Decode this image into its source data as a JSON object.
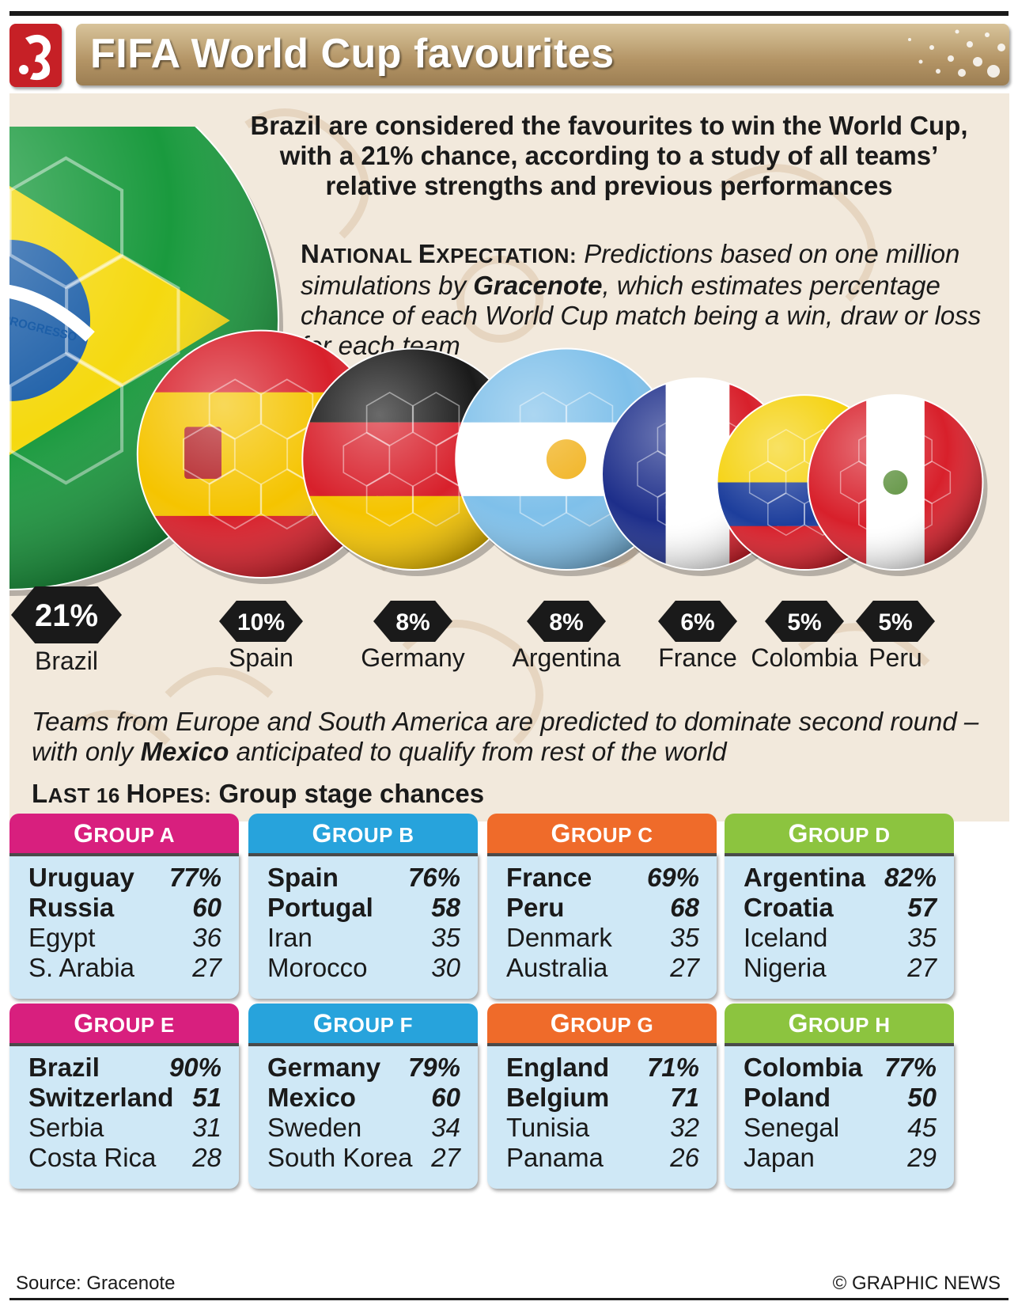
{
  "header": {
    "title": "FIFA World Cup favourites"
  },
  "intro": {
    "line1": "Brazil are considered the favourites to win the World Cup,",
    "line2": "with a 21% chance, according to a study of all teams’",
    "line3": "relative strengths and previous performances"
  },
  "expectation": {
    "label_cap1": "N",
    "label_rest1": "ATIONAL ",
    "label_cap2": "E",
    "label_rest2": "XPECTATION:",
    "text_pre": " Predictions based on one million simulations by ",
    "highlight": "Gracenote",
    "text_post": ", which estimates percentage chance of each World Cup match being a win, draw or loss for each team"
  },
  "chart_data": {
    "type": "bar",
    "categories": [
      "Brazil",
      "Spain",
      "Germany",
      "Argentina",
      "France",
      "Colombia",
      "Peru"
    ],
    "values": [
      21,
      10,
      8,
      8,
      6,
      5,
      5
    ],
    "value_labels": [
      "21%",
      "10%",
      "8%",
      "8%",
      "6%",
      "5%",
      "5%"
    ],
    "flag_ball_text": "M E PROGRESSO",
    "unit": "%"
  },
  "note": {
    "pre": "Teams from Europe and South America are predicted to dominate second round – with only ",
    "highlight": "Mexico",
    "post": " anticipated to qualify from rest of the world"
  },
  "subhead": {
    "cap1": "L",
    "rest1": "AST 16 ",
    "cap2": "H",
    "rest2": "OPES:",
    "rest": " Group stage chances"
  },
  "groups": [
    {
      "cap": "G",
      "rest": "ROUP A",
      "color": "#d81f7e",
      "teams": [
        [
          "Uruguay",
          "77%"
        ],
        [
          "Russia",
          "60"
        ],
        [
          "Egypt",
          "36"
        ],
        [
          "S. Arabia",
          "27"
        ]
      ]
    },
    {
      "cap": "G",
      "rest": "ROUP B",
      "color": "#27a3dc",
      "teams": [
        [
          "Spain",
          "76%"
        ],
        [
          "Portugal",
          "58"
        ],
        [
          "Iran",
          "35"
        ],
        [
          "Morocco",
          "30"
        ]
      ]
    },
    {
      "cap": "G",
      "rest": "ROUP C",
      "color": "#ef6b2a",
      "teams": [
        [
          "France",
          "69%"
        ],
        [
          "Peru",
          "68"
        ],
        [
          "Denmark",
          "35"
        ],
        [
          "Australia",
          "27"
        ]
      ]
    },
    {
      "cap": "G",
      "rest": "ROUP D",
      "color": "#8cc43f",
      "teams": [
        [
          "Argentina",
          "82%"
        ],
        [
          "Croatia",
          "57"
        ],
        [
          "Iceland",
          "35"
        ],
        [
          "Nigeria",
          "27"
        ]
      ]
    },
    {
      "cap": "G",
      "rest": "ROUP E",
      "color": "#d81f7e",
      "teams": [
        [
          "Brazil",
          "90%"
        ],
        [
          "Switzerland",
          "51"
        ],
        [
          "Serbia",
          "31"
        ],
        [
          "Costa Rica",
          "28"
        ]
      ]
    },
    {
      "cap": "G",
      "rest": "ROUP F",
      "color": "#27a3dc",
      "teams": [
        [
          "Germany",
          "79%"
        ],
        [
          "Mexico",
          "60"
        ],
        [
          "Sweden",
          "34"
        ],
        [
          "South Korea",
          "27"
        ]
      ]
    },
    {
      "cap": "G",
      "rest": "ROUP G",
      "color": "#ef6b2a",
      "teams": [
        [
          "England",
          "71%"
        ],
        [
          "Belgium",
          "71"
        ],
        [
          "Tunisia",
          "32"
        ],
        [
          "Panama",
          "26"
        ]
      ]
    },
    {
      "cap": "G",
      "rest": "ROUP H",
      "color": "#8cc43f",
      "teams": [
        [
          "Colombia",
          "77%"
        ],
        [
          "Poland",
          "50"
        ],
        [
          "Senegal",
          "45"
        ],
        [
          "Japan",
          "29"
        ]
      ]
    }
  ],
  "footer": {
    "source": "Source: Gracenote",
    "credit": "© GRAPHIC NEWS"
  }
}
